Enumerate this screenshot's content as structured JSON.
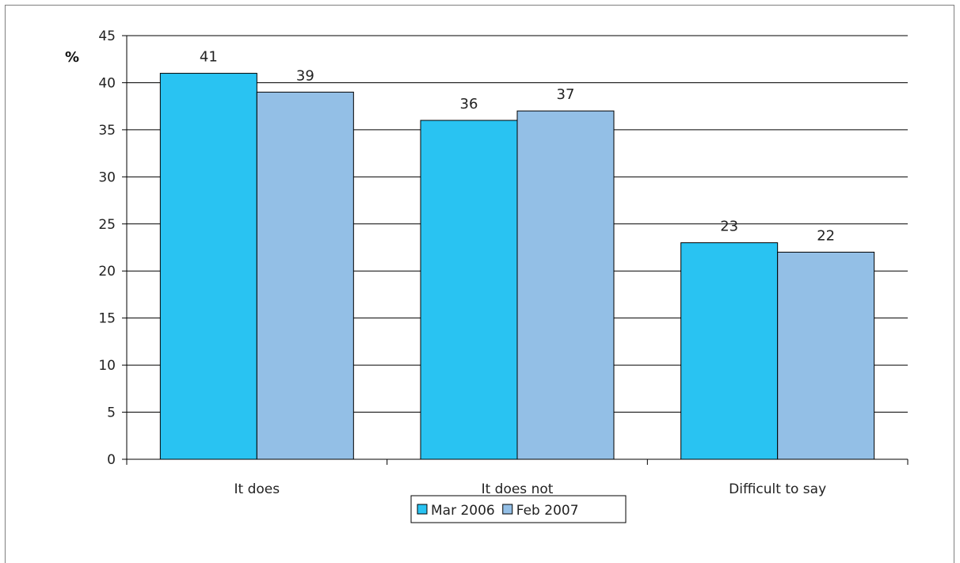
{
  "chart_data": {
    "type": "bar",
    "ylabel": "%",
    "ylim": [
      0,
      45
    ],
    "yticks": [
      0,
      5,
      10,
      15,
      20,
      25,
      30,
      35,
      40,
      45
    ],
    "grid": true,
    "legend_position": "bottom",
    "categories": [
      "It does",
      "It does not",
      "Difficult to say"
    ],
    "series": [
      {
        "name": "Mar 2006",
        "color": "#29c3f2",
        "values": [
          41,
          36,
          23
        ]
      },
      {
        "name": "Feb 2007",
        "color": "#93bfe6",
        "values": [
          39,
          37,
          22
        ]
      }
    ]
  }
}
